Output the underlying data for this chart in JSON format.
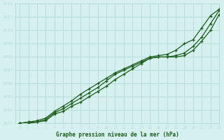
{
  "title": "Graphe pression niveau de la mer (hPa)",
  "bg_color": "#d6f0ef",
  "grid_color": "#b8ddd8",
  "line_color1": "#1a5c1a",
  "line_color2": "#1a5c1a",
  "line_color3": "#1a5c1a",
  "xlim": [
    -0.5,
    23
  ],
  "ylim": [
    1003,
    1012
  ],
  "xticks": [
    0,
    1,
    2,
    3,
    4,
    5,
    6,
    7,
    8,
    9,
    10,
    11,
    12,
    13,
    14,
    15,
    16,
    17,
    18,
    19,
    20,
    21,
    22,
    23
  ],
  "yticks": [
    1003,
    1004,
    1005,
    1006,
    1007,
    1008,
    1009,
    1010,
    1011,
    1012
  ],
  "series1_x": [
    0,
    1,
    2,
    3,
    4,
    5,
    6,
    7,
    8,
    9,
    10,
    11,
    12,
    13,
    14,
    15,
    16,
    17,
    18,
    19,
    20,
    21,
    22,
    23
  ],
  "series1_y": [
    1003.0,
    1003.1,
    1003.2,
    1003.4,
    1003.9,
    1004.3,
    1004.7,
    1005.2,
    1005.6,
    1006.0,
    1006.4,
    1006.8,
    1007.1,
    1007.4,
    1007.7,
    1008.0,
    1008.1,
    1008.2,
    1008.5,
    1009.0,
    1009.3,
    1010.2,
    1011.1,
    1011.6
  ],
  "series2_x": [
    0,
    1,
    2,
    3,
    4,
    5,
    6,
    7,
    8,
    9,
    10,
    11,
    12,
    13,
    14,
    15,
    16,
    17,
    18,
    19,
    20,
    21,
    22,
    23
  ],
  "series2_y": [
    1003.0,
    1003.1,
    1003.1,
    1003.3,
    1003.8,
    1004.1,
    1004.5,
    1004.9,
    1005.3,
    1005.7,
    1006.2,
    1006.7,
    1007.0,
    1007.3,
    1007.6,
    1007.9,
    1008.0,
    1008.0,
    1008.1,
    1008.3,
    1008.8,
    1009.5,
    1010.5,
    1011.5
  ],
  "series3_x": [
    0,
    1,
    2,
    3,
    4,
    5,
    6,
    7,
    8,
    9,
    10,
    11,
    12,
    13,
    14,
    15,
    16,
    17,
    18,
    19,
    20,
    21,
    22,
    23
  ],
  "series3_y": [
    1003.0,
    1003.0,
    1003.1,
    1003.2,
    1003.7,
    1003.9,
    1004.3,
    1004.6,
    1005.0,
    1005.4,
    1005.8,
    1006.3,
    1006.7,
    1007.1,
    1007.5,
    1007.9,
    1008.0,
    1008.0,
    1008.0,
    1008.1,
    1008.5,
    1009.2,
    1010.0,
    1011.2
  ]
}
